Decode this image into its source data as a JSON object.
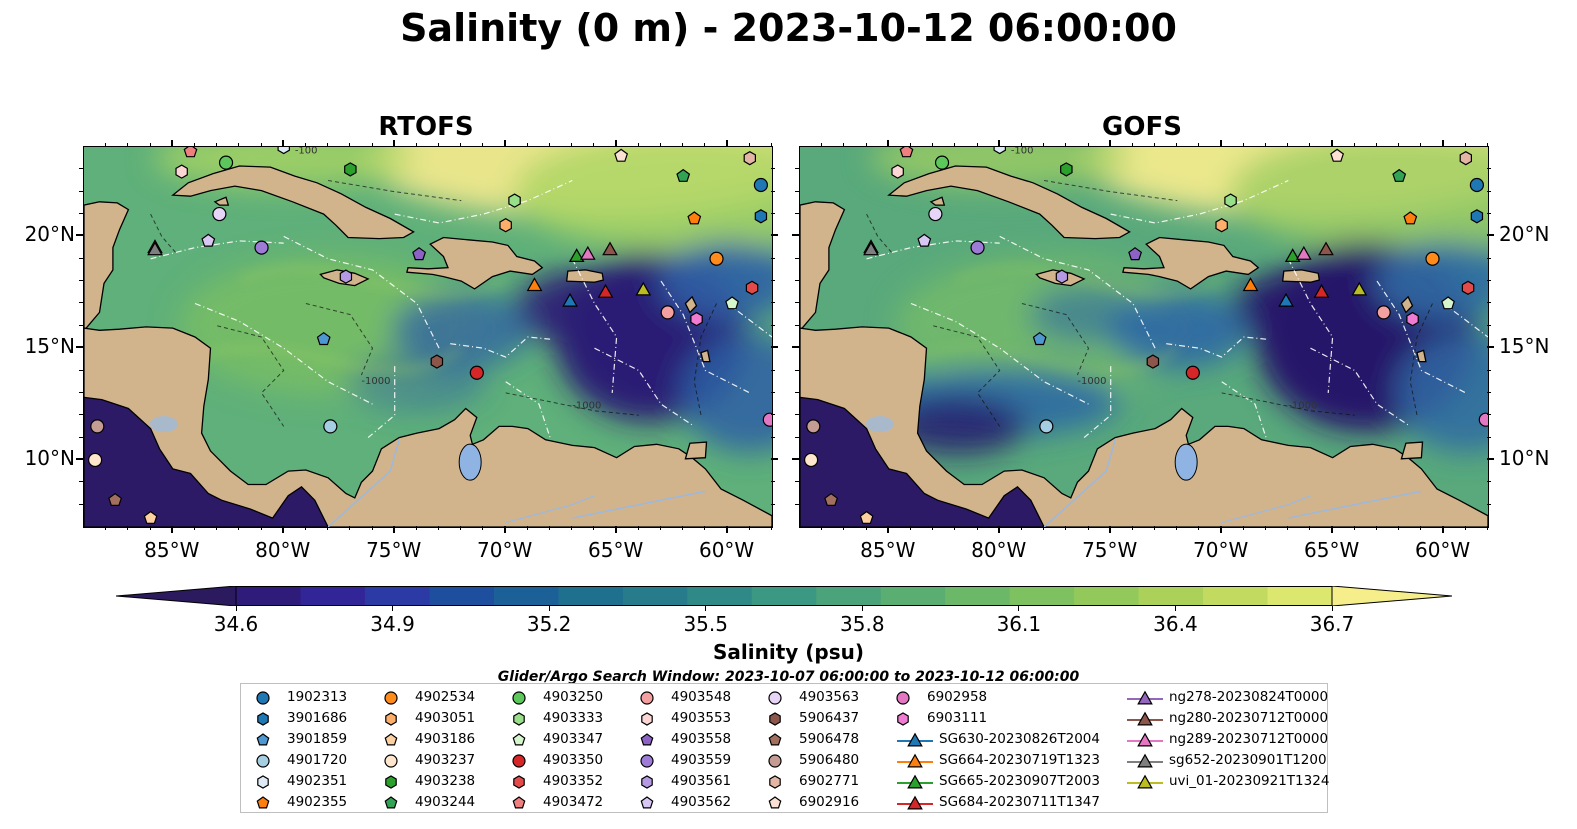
{
  "title": "Salinity (0 m) - 2023-10-12 06:00:00",
  "panels": [
    {
      "title": "RTOFS",
      "style": "rtofs"
    },
    {
      "title": "GOFS",
      "style": "gofs"
    }
  ],
  "x_axis": {
    "ticks": [
      "85°W",
      "80°W",
      "75°W",
      "70°W",
      "65°W",
      "60°W"
    ],
    "lon_values": [
      -85,
      -80,
      -75,
      -70,
      -65,
      -60
    ],
    "extent": [
      -89,
      -58
    ]
  },
  "y_axis": {
    "ticks": [
      "20°N",
      "15°N",
      "10°N"
    ],
    "lat_values": [
      20,
      15,
      10
    ],
    "extent": [
      7,
      24
    ]
  },
  "colorbar": {
    "title": "Salinity (psu)",
    "ticks": [
      "34.6",
      "34.9",
      "35.2",
      "35.5",
      "35.8",
      "36.1",
      "36.4",
      "36.7"
    ],
    "min": 34.6,
    "max": 36.7,
    "colors": [
      "#2c1a5e",
      "#2f1c7a",
      "#322597",
      "#2b3aa4",
      "#1d4f9e",
      "#1b6096",
      "#1f6f8e",
      "#267c8a",
      "#2f8a87",
      "#3a9883",
      "#4aa37b",
      "#5aae72",
      "#6bb869",
      "#7dc160",
      "#93c95a",
      "#abd15a",
      "#c3da60",
      "#dce76f",
      "#f5ee8a"
    ]
  },
  "legend_title": "Glider/Argo Search Window: 2023-10-07 06:00:00 to 2023-10-12 06:00:00",
  "legend": [
    {
      "label": "1902313",
      "marker": "circle",
      "color": "#1f77b4"
    },
    {
      "label": "3901686",
      "marker": "hexagon",
      "color": "#1f77b4"
    },
    {
      "label": "3901859",
      "marker": "pentagon",
      "color": "#4f97d0"
    },
    {
      "label": "4901720",
      "marker": "circle",
      "color": "#a6cee3"
    },
    {
      "label": "4902351",
      "marker": "hexagon",
      "color": "#deebf7"
    },
    {
      "label": "4902355",
      "marker": "pentagon",
      "color": "#ff7f0e"
    },
    {
      "label": "4902534",
      "marker": "circle",
      "color": "#ff8c1a"
    },
    {
      "label": "4903051",
      "marker": "hexagon",
      "color": "#fdae6b"
    },
    {
      "label": "4903186",
      "marker": "pentagon",
      "color": "#fdd0a2"
    },
    {
      "label": "4903237",
      "marker": "circle",
      "color": "#ffe6cc"
    },
    {
      "label": "4903238",
      "marker": "hexagon",
      "color": "#2ca02c"
    },
    {
      "label": "4903244",
      "marker": "pentagon",
      "color": "#31a354"
    },
    {
      "label": "4903250",
      "marker": "circle",
      "color": "#5cc85c"
    },
    {
      "label": "4903333",
      "marker": "hexagon",
      "color": "#98df8a"
    },
    {
      "label": "4903347",
      "marker": "pentagon",
      "color": "#d5f5cc"
    },
    {
      "label": "4903350",
      "marker": "circle",
      "color": "#d62728"
    },
    {
      "label": "4903352",
      "marker": "hexagon",
      "color": "#e34a4a"
    },
    {
      "label": "4903472",
      "marker": "pentagon",
      "color": "#f08080"
    },
    {
      "label": "4903548",
      "marker": "circle",
      "color": "#f4a0a0"
    },
    {
      "label": "4903553",
      "marker": "hexagon",
      "color": "#fcd5d5"
    },
    {
      "label": "4903558",
      "marker": "pentagon",
      "color": "#8c63c4"
    },
    {
      "label": "4903559",
      "marker": "circle",
      "color": "#9e7bd6"
    },
    {
      "label": "4903561",
      "marker": "hexagon",
      "color": "#b59ae3"
    },
    {
      "label": "4903562",
      "marker": "pentagon",
      "color": "#d7c7f2"
    },
    {
      "label": "4903563",
      "marker": "circle",
      "color": "#e6d5f7"
    },
    {
      "label": "5906437",
      "marker": "hexagon",
      "color": "#8c564b"
    },
    {
      "label": "5906478",
      "marker": "pentagon",
      "color": "#a3705f"
    },
    {
      "label": "5906480",
      "marker": "circle",
      "color": "#c49c94"
    },
    {
      "label": "6902771",
      "marker": "hexagon",
      "color": "#e3b5a5"
    },
    {
      "label": "6902916",
      "marker": "pentagon",
      "color": "#fbe0d3"
    },
    {
      "label": "6902958",
      "marker": "circle",
      "color": "#e377c2"
    },
    {
      "label": "6903111",
      "marker": "hexagon",
      "color": "#f07bd2"
    },
    {
      "label": "SG630-20230826T2004",
      "marker": "triangle-line",
      "color": "#1f77b4"
    },
    {
      "label": "SG664-20230719T1323",
      "marker": "triangle-line",
      "color": "#ff7f0e"
    },
    {
      "label": "SG665-20230907T2003",
      "marker": "triangle-line",
      "color": "#2ca02c"
    },
    {
      "label": "SG684-20230711T1347",
      "marker": "triangle-line",
      "color": "#d62728"
    },
    {
      "label": "ng278-20230824T0000",
      "marker": "triangle-line",
      "color": "#9467bd"
    },
    {
      "label": "ng280-20230712T0000",
      "marker": "triangle-line",
      "color": "#8c564b"
    },
    {
      "label": "ng289-20230712T0000",
      "marker": "triangle-line",
      "color": "#e377c2"
    },
    {
      "label": "sg652-20230901T1200",
      "marker": "triangle-line",
      "color": "#7f7f7f"
    },
    {
      "label": "uvi_01-20230921T1324",
      "marker": "triangle-line",
      "color": "#bcbd22"
    }
  ],
  "markers_on_map": [
    {
      "label": "1902313",
      "lon": -58.5,
      "lat": 22.3
    },
    {
      "label": "3901686",
      "lon": -58.5,
      "lat": 20.9
    },
    {
      "label": "3901859",
      "lon": -78.2,
      "lat": 15.4
    },
    {
      "label": "4901720",
      "lon": -77.9,
      "lat": 11.5
    },
    {
      "label": "4902351",
      "lon": -80.0,
      "lat": 24.0
    },
    {
      "label": "4902355",
      "lon": -61.5,
      "lat": 20.8
    },
    {
      "label": "4902534",
      "lon": -60.5,
      "lat": 19.0
    },
    {
      "label": "4903051",
      "lon": -70.0,
      "lat": 20.5
    },
    {
      "label": "4903186",
      "lon": -86.0,
      "lat": 7.4
    },
    {
      "label": "4903237",
      "lon": -88.5,
      "lat": 10.0
    },
    {
      "label": "4903238",
      "lon": -77.0,
      "lat": 23.0
    },
    {
      "label": "4903244",
      "lon": -62.0,
      "lat": 22.7
    },
    {
      "label": "4903250",
      "lon": -82.6,
      "lat": 23.3
    },
    {
      "label": "4903333",
      "lon": -69.6,
      "lat": 21.6
    },
    {
      "label": "4903347",
      "lon": -59.8,
      "lat": 17.0
    },
    {
      "label": "4903350",
      "lon": -71.3,
      "lat": 13.9
    },
    {
      "label": "4903352",
      "lon": -58.9,
      "lat": 17.7
    },
    {
      "label": "4903472",
      "lon": -84.2,
      "lat": 23.8
    },
    {
      "label": "4903548",
      "lon": -62.7,
      "lat": 16.6
    },
    {
      "label": "4903553",
      "lon": -84.6,
      "lat": 22.9
    },
    {
      "label": "4903558",
      "lon": -73.9,
      "lat": 19.2
    },
    {
      "label": "4903559",
      "lon": -81.0,
      "lat": 19.5
    },
    {
      "label": "4903561",
      "lon": -77.2,
      "lat": 18.2
    },
    {
      "label": "4903562",
      "lon": -83.4,
      "lat": 19.8
    },
    {
      "label": "4903563",
      "lon": -82.9,
      "lat": 21.0
    },
    {
      "label": "5906437",
      "lon": -73.1,
      "lat": 14.4
    },
    {
      "label": "5906478",
      "lon": -87.6,
      "lat": 8.2
    },
    {
      "label": "5906480",
      "lon": -88.4,
      "lat": 11.5
    },
    {
      "label": "6902771",
      "lon": -59.0,
      "lat": 23.5
    },
    {
      "label": "6902916",
      "lon": -64.8,
      "lat": 23.6
    },
    {
      "label": "6902958",
      "lon": -58.1,
      "lat": 11.8
    },
    {
      "label": "6903111",
      "lon": -61.4,
      "lat": 16.3
    },
    {
      "label": "SG630-20230826T2004",
      "lon": -67.1,
      "lat": 17.1
    },
    {
      "label": "SG664-20230719T1323",
      "lon": -68.7,
      "lat": 17.8
    },
    {
      "label": "SG665-20230907T2003",
      "lon": -66.8,
      "lat": 19.1
    },
    {
      "label": "SG684-20230711T1347",
      "lon": -65.5,
      "lat": 17.5
    },
    {
      "label": "ng278-20230824T0000",
      "lon": -85.8,
      "lat": 19.5
    },
    {
      "label": "ng280-20230712T0000",
      "lon": -65.3,
      "lat": 19.4
    },
    {
      "label": "ng289-20230712T0000",
      "lon": -66.3,
      "lat": 19.2
    },
    {
      "label": "sg652-20230901T1200",
      "lon": -85.8,
      "lat": 19.4
    },
    {
      "label": "uvi_01-20230921T1324",
      "lon": -63.8,
      "lat": 17.6
    }
  ],
  "contour_labels": [
    "-100",
    "-1000",
    "-1000"
  ]
}
